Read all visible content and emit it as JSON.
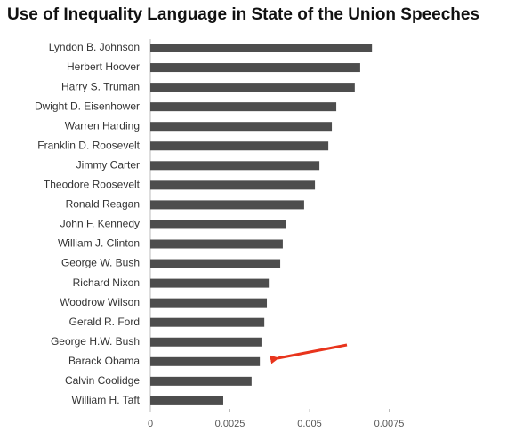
{
  "chart_data": {
    "type": "barh",
    "title": "Use of Inequality Language in State of the Union Speeches",
    "categories": [
      "Lyndon B. Johnson",
      "Herbert Hoover",
      "Harry S. Truman",
      "Dwight D. Eisenhower",
      "Warren Harding",
      "Franklin D. Roosevelt",
      "Jimmy Carter",
      "Theodore Roosevelt",
      "Ronald Reagan",
      "John F. Kennedy",
      "William J. Clinton",
      "George W. Bush",
      "Richard Nixon",
      "Woodrow Wilson",
      "Gerald R. Ford",
      "George H.W. Bush",
      "Barack Obama",
      "Calvin Coolidge",
      "William H. Taft"
    ],
    "values": [
      0.00696,
      0.00659,
      0.00642,
      0.00584,
      0.0057,
      0.00559,
      0.00531,
      0.00517,
      0.00483,
      0.00425,
      0.00416,
      0.00408,
      0.00372,
      0.00366,
      0.00358,
      0.00349,
      0.00344,
      0.00318,
      0.00229
    ],
    "color": "#4d4d4d",
    "xlim": [
      0,
      0.0075
    ],
    "xticks": [
      0,
      0.0025,
      0.005,
      0.0075
    ]
  }
}
